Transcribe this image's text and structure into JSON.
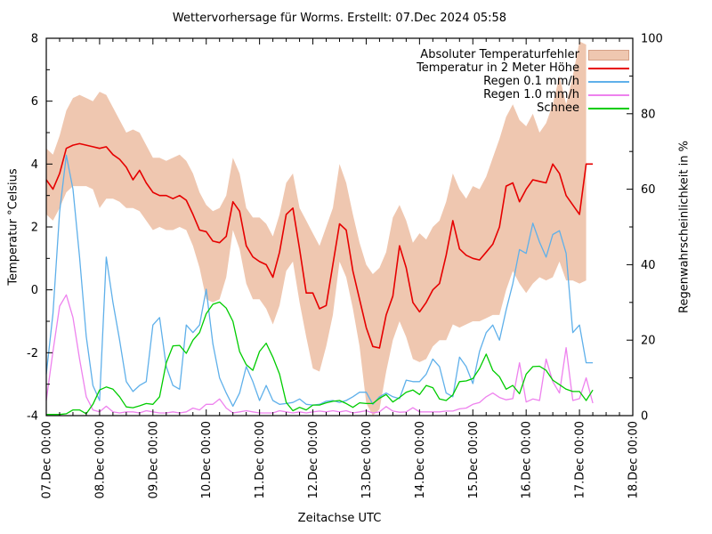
{
  "title": "Wettervorhersage für Worms. Erstellt: 07.Dec 2024 05:58",
  "axes": {
    "x_label": "Zeitachse UTC",
    "y_left_label": "Temperatur °Celsius",
    "y_right_label": "Regenwahrscheinlichkeit in %",
    "x_tick_labels": [
      "07.Dec 00:00",
      "08.Dec 00:00",
      "09.Dec 00:00",
      "10.Dec 00:00",
      "11.Dec 00:00",
      "12.Dec 00:00",
      "13.Dec 00:00",
      "14.Dec 00:00",
      "15.Dec 00:00",
      "16.Dec 00:00",
      "17.Dec 00:00",
      "18.Dec 00:00"
    ],
    "y_left_ticks": [
      -4,
      -2,
      0,
      2,
      4,
      6,
      8
    ],
    "y_right_ticks": [
      0,
      20,
      40,
      60,
      80,
      100
    ],
    "y_left_range": [
      -4,
      8
    ],
    "y_right_range": [
      0,
      100
    ],
    "x_range_hours": [
      0,
      264
    ]
  },
  "legend": {
    "items": [
      {
        "label": "Absoluter Temperaturfehler",
        "color": "#efc7b0",
        "border": "#d5a086",
        "type": "band"
      },
      {
        "label": "Temperatur in 2 Meter Höhe",
        "color": "#e60000",
        "type": "line"
      },
      {
        "label": "Regen 0.1 mm/h",
        "color": "#5fb0ea",
        "type": "line"
      },
      {
        "label": "Regen 1.0 mm/h",
        "color": "#ee82ee",
        "type": "line"
      },
      {
        "label": "Schnee",
        "color": "#00cc00",
        "type": "line"
      }
    ]
  },
  "colors": {
    "frame": "#000000",
    "background": "#ffffff",
    "band_fill": "#efc7b0"
  },
  "chart_data": {
    "type": "line",
    "title": "Wettervorhersage für Worms. Erstellt: 07.Dec 2024 05:58",
    "xlabel": "Zeitachse UTC",
    "ylabel_left": "Temperatur °Celsius",
    "ylabel_right": "Regenwahrscheinlichkeit in %",
    "ylim_left": [
      -4,
      8
    ],
    "ylim_right": [
      0,
      100
    ],
    "x_unit": "hours since 07.Dec 00:00 UTC",
    "x_hours": [
      0,
      3,
      6,
      9,
      12,
      15,
      18,
      21,
      24,
      27,
      30,
      33,
      36,
      39,
      42,
      45,
      48,
      51,
      54,
      57,
      60,
      63,
      66,
      69,
      72,
      75,
      78,
      81,
      84,
      87,
      90,
      93,
      96,
      99,
      102,
      105,
      108,
      111,
      114,
      117,
      120,
      123,
      126,
      129,
      132,
      135,
      138,
      141,
      144,
      147,
      150,
      153,
      156,
      159,
      162,
      165,
      168,
      171,
      174,
      177,
      180,
      183,
      186,
      189,
      192,
      195,
      198,
      201,
      204,
      207,
      210,
      213,
      216,
      219,
      222,
      225,
      228,
      231,
      234,
      237,
      240,
      243,
      246
    ],
    "series": [
      {
        "name": "Absoluter Temperaturfehler",
        "type": "band",
        "axis": "left",
        "color": "#efc7b0",
        "upper": [
          4.5,
          4.3,
          4.9,
          5.7,
          6.1,
          6.2,
          6.1,
          6.0,
          6.3,
          6.2,
          5.8,
          5.4,
          5.0,
          5.1,
          5.0,
          4.6,
          4.2,
          4.2,
          4.1,
          4.2,
          4.3,
          4.1,
          3.7,
          3.1,
          2.7,
          2.5,
          2.6,
          3.0,
          4.2,
          3.7,
          2.6,
          2.3,
          2.3,
          2.1,
          1.7,
          2.4,
          3.4,
          3.7,
          2.6,
          2.2,
          1.8,
          1.4,
          2.0,
          2.6,
          4.0,
          3.4,
          2.4,
          1.5,
          0.8,
          0.5,
          0.7,
          1.2,
          2.3,
          2.7,
          2.2,
          1.5,
          1.8,
          1.6,
          2.0,
          2.2,
          2.8,
          3.7,
          3.2,
          2.9,
          3.3,
          3.2,
          3.6,
          4.2,
          4.8,
          5.5,
          5.9,
          5.4,
          5.2,
          5.6,
          5.0,
          5.3,
          5.9,
          6.8,
          5.9,
          6.8,
          7.9,
          7.8,
          null
        ],
        "lower": [
          2.4,
          2.2,
          2.6,
          3.1,
          3.3,
          3.3,
          3.3,
          3.2,
          2.6,
          2.9,
          2.9,
          2.8,
          2.6,
          2.6,
          2.5,
          2.2,
          1.9,
          2.0,
          1.9,
          1.9,
          2.0,
          1.9,
          1.4,
          0.7,
          -0.3,
          -0.4,
          -0.3,
          0.4,
          1.9,
          1.3,
          0.2,
          -0.3,
          -0.3,
          -0.6,
          -1.1,
          -0.5,
          0.6,
          0.9,
          -0.4,
          -1.5,
          -2.5,
          -2.6,
          -1.8,
          -0.8,
          0.9,
          0.4,
          -0.6,
          -1.8,
          -3.6,
          -4.0,
          -3.8,
          -2.6,
          -1.6,
          -1.0,
          -1.5,
          -2.2,
          -2.3,
          -2.2,
          -1.8,
          -1.6,
          -1.6,
          -1.1,
          -1.2,
          -1.1,
          -1.0,
          -1.0,
          -0.9,
          -0.8,
          -0.8,
          0.0,
          0.6,
          0.2,
          -0.1,
          0.2,
          0.4,
          0.3,
          0.4,
          0.9,
          0.3,
          0.3,
          0.2,
          0.3,
          null
        ]
      },
      {
        "name": "Temperatur in 2 Meter Höhe",
        "type": "line",
        "axis": "left",
        "color": "#e60000",
        "values": [
          3.5,
          3.2,
          3.7,
          4.5,
          4.6,
          4.65,
          4.6,
          4.55,
          4.5,
          4.55,
          4.3,
          4.15,
          3.9,
          3.5,
          3.8,
          3.4,
          3.1,
          3.0,
          3.0,
          2.9,
          3.0,
          2.85,
          2.4,
          1.9,
          1.85,
          1.55,
          1.5,
          1.7,
          2.8,
          2.5,
          1.4,
          1.05,
          0.9,
          0.8,
          0.4,
          1.2,
          2.4,
          2.6,
          1.3,
          -0.1,
          -0.1,
          -0.6,
          -0.5,
          0.8,
          2.1,
          1.9,
          0.6,
          -0.3,
          -1.2,
          -1.8,
          -1.85,
          -0.8,
          -0.2,
          1.4,
          0.7,
          -0.4,
          -0.7,
          -0.4,
          0.0,
          0.2,
          1.1,
          2.2,
          1.3,
          1.1,
          1.0,
          0.95,
          1.2,
          1.45,
          2.0,
          3.3,
          3.4,
          2.8,
          3.2,
          3.5,
          3.45,
          3.4,
          4.0,
          3.7,
          3.0,
          2.7,
          2.4,
          4.0,
          4.0
        ]
      },
      {
        "name": "Regen 0.1 mm/h",
        "type": "line",
        "axis": "right",
        "color": "#5fb0ea",
        "values": [
          11,
          27,
          54,
          69,
          60,
          42,
          21,
          8,
          4,
          42,
          30,
          20,
          9,
          6.4,
          8,
          9,
          24,
          26,
          13,
          8,
          7,
          24,
          22,
          24,
          33.5,
          19,
          10,
          6,
          2.5,
          6,
          13,
          9,
          4,
          8,
          4,
          3,
          3.2,
          3.5,
          4.4,
          3,
          2.8,
          3,
          3.8,
          4,
          3.5,
          4,
          5,
          6.2,
          6.2,
          3,
          5,
          6,
          5,
          4.5,
          9.4,
          9,
          9,
          11,
          15,
          13,
          6,
          5,
          15.5,
          13,
          8.5,
          17,
          22,
          24,
          20,
          28,
          35,
          44,
          43,
          51,
          46,
          42,
          48,
          49,
          43,
          22,
          24,
          14,
          14
        ]
      },
      {
        "name": "Regen 1.0 mm/h",
        "type": "line",
        "axis": "right",
        "color": "#ee82ee",
        "values": [
          4,
          17,
          29,
          32,
          26,
          15,
          5,
          1.5,
          1,
          2.5,
          1,
          0.7,
          1,
          1,
          0.7,
          1.3,
          1,
          0.7,
          0.7,
          1,
          0.7,
          1,
          2,
          1.5,
          3,
          3,
          4.4,
          2,
          0.7,
          1,
          1.3,
          1,
          0.7,
          0.7,
          0.7,
          1.3,
          1,
          0.7,
          1,
          0.7,
          1,
          1.2,
          1,
          1.3,
          1,
          1.3,
          0.7,
          1,
          1.3,
          0.7,
          1,
          2.4,
          1.2,
          0.9,
          1,
          2.1,
          1,
          1,
          1,
          1,
          1.2,
          1.2,
          1.8,
          2,
          3,
          3.5,
          5,
          6,
          4.8,
          4.2,
          4.5,
          14,
          3.6,
          4.4,
          4,
          15,
          9,
          6,
          18,
          4,
          4.5,
          10,
          3.3
        ]
      },
      {
        "name": "Schnee",
        "type": "line",
        "axis": "right",
        "color": "#00cc00",
        "values": [
          0.3,
          0.3,
          0.3,
          0.5,
          1.5,
          1.5,
          0.5,
          3,
          6.8,
          7.6,
          7,
          5,
          2.3,
          2.1,
          2.6,
          3.2,
          3,
          5,
          14,
          18.5,
          18.6,
          16.5,
          20,
          22,
          27,
          29.5,
          30.1,
          28.5,
          25,
          17,
          13.5,
          12,
          17,
          19.2,
          15.5,
          11,
          3.5,
          1.3,
          2.2,
          1.5,
          2.8,
          2.8,
          3.4,
          3.8,
          4,
          3.2,
          2.2,
          3.4,
          3.2,
          3.2,
          4.6,
          5.6,
          3.6,
          4.8,
          6.2,
          6.8,
          5.6,
          8,
          7.4,
          4.4,
          4,
          5.5,
          9,
          9.2,
          9.8,
          12.5,
          16.3,
          12,
          10.3,
          7,
          8,
          5.8,
          11,
          13,
          13.1,
          12,
          9.4,
          8.2,
          7,
          6.4,
          6.4,
          4,
          6.8
        ]
      }
    ]
  }
}
